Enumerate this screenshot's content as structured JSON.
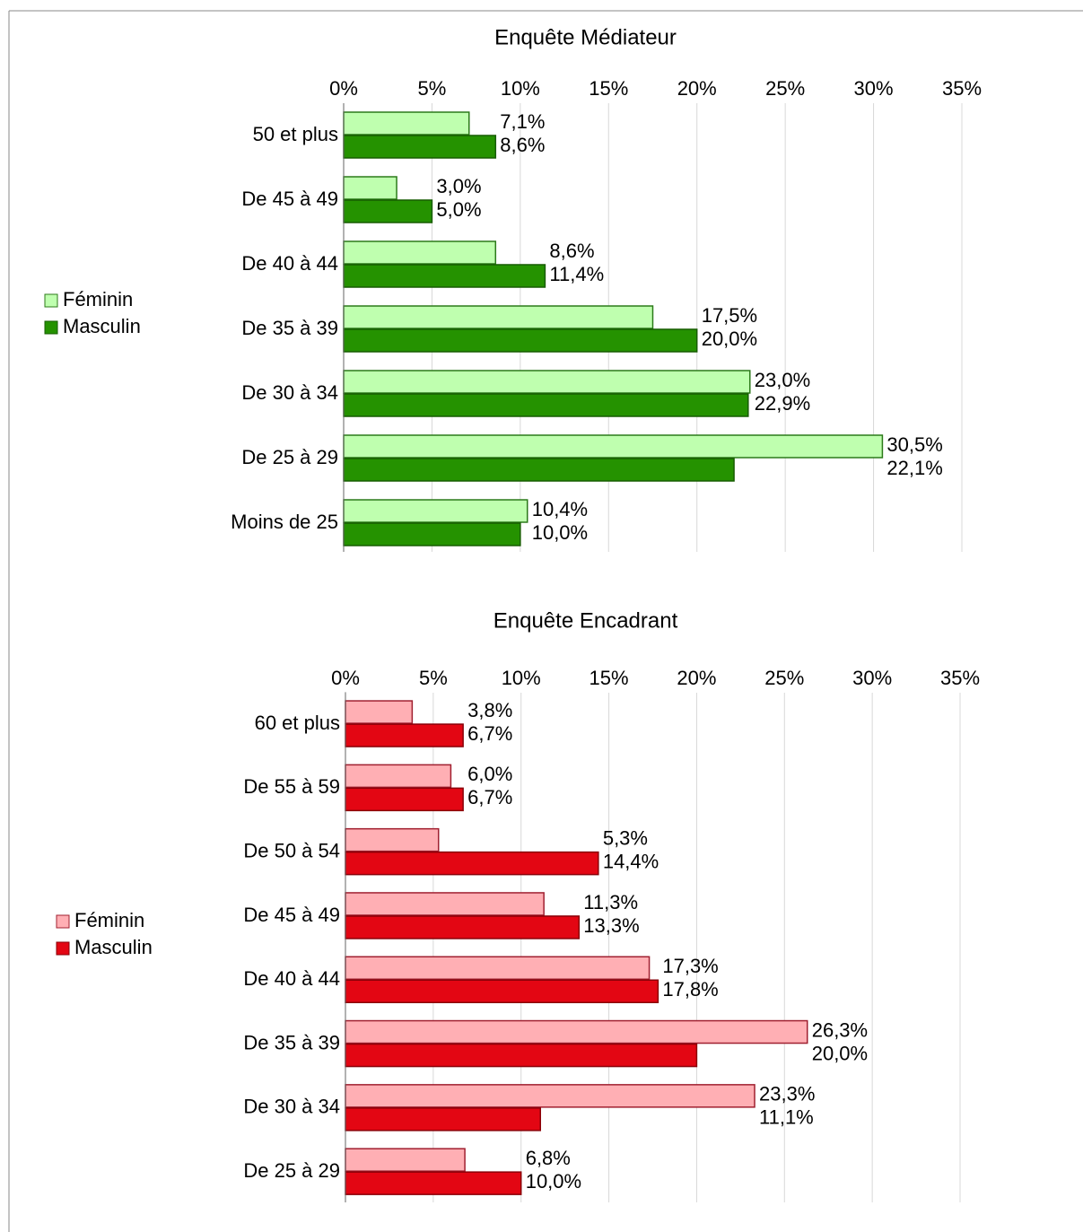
{
  "chart_data": [
    {
      "type": "barh",
      "title": "Enquête Médiateur",
      "categories": [
        "50 et plus",
        "De 45 à 49",
        "De 40 à 44",
        "De 35 à 39",
        "De 30 à 34",
        "De 25 à 29",
        "Moins de 25"
      ],
      "series": [
        {
          "name": "Féminin",
          "color": "#bfffaf",
          "values": [
            7.1,
            3.0,
            8.6,
            17.5,
            23.0,
            30.5,
            10.4
          ],
          "value_labels": [
            "7,1%",
            "3,0%",
            "8,6%",
            "17,5%",
            "23,0%",
            "30,5%",
            "10,4%"
          ]
        },
        {
          "name": "Masculin",
          "color": "#259200",
          "values": [
            8.6,
            5.0,
            11.4,
            20.0,
            22.9,
            22.1,
            10.0
          ],
          "value_labels": [
            "8,6%",
            "5,0%",
            "11,4%",
            "20,0%",
            "22,9%",
            "22,1%",
            "10,0%"
          ]
        }
      ],
      "xlim": [
        0,
        35
      ],
      "xticks": [
        {
          "value": 0,
          "label": "0%"
        },
        {
          "value": 5,
          "label": "5%"
        },
        {
          "value": 10,
          "label": "10%"
        },
        {
          "value": 15,
          "label": "15%"
        },
        {
          "value": 20,
          "label": "20%"
        },
        {
          "value": 25,
          "label": "25%"
        },
        {
          "value": 30,
          "label": "30%"
        },
        {
          "value": 35,
          "label": "35%"
        }
      ],
      "grid": true,
      "legend": "left"
    },
    {
      "type": "barh",
      "title": "Enquête Encadrant",
      "categories": [
        "60 et plus",
        "De 55 à 59",
        "De 50 à 54",
        "De 45 à 49",
        "De 40 à 44",
        "De 35 à 39",
        "De 30 à 34",
        "De 25 à 29"
      ],
      "series": [
        {
          "name": "Féminin",
          "color": "#ffafb4",
          "values": [
            3.8,
            6.0,
            5.3,
            11.3,
            17.3,
            26.3,
            23.3,
            6.8
          ],
          "value_labels": [
            "3,8%",
            "6,0%",
            "5,3%",
            "11,3%",
            "17,3%",
            "26,3%",
            "23,3%",
            "6,8%"
          ]
        },
        {
          "name": "Masculin",
          "color": "#e30613",
          "values": [
            6.7,
            6.7,
            14.4,
            13.3,
            17.8,
            20.0,
            11.1,
            10.0
          ],
          "value_labels": [
            "6,7%",
            "6,7%",
            "14,4%",
            "13,3%",
            "17,8%",
            "20,0%",
            "11,1%",
            "10,0%"
          ]
        }
      ],
      "xlim": [
        0,
        35
      ],
      "xticks": [
        {
          "value": 0,
          "label": "0%"
        },
        {
          "value": 5,
          "label": "5%"
        },
        {
          "value": 10,
          "label": "10%"
        },
        {
          "value": 15,
          "label": "15%"
        },
        {
          "value": 20,
          "label": "20%"
        },
        {
          "value": 25,
          "label": "25%"
        },
        {
          "value": 30,
          "label": "30%"
        },
        {
          "value": 35,
          "label": "35%"
        }
      ],
      "grid": true,
      "legend": "left"
    }
  ]
}
